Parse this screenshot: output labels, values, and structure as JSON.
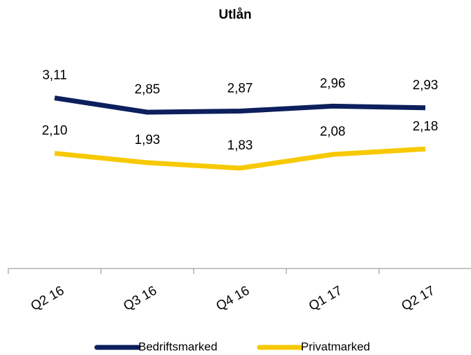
{
  "chart_data": {
    "type": "line",
    "title": "Utlån",
    "categories": [
      "Q2 16",
      "Q3 16",
      "Q4 16",
      "Q1 17",
      "Q2 17"
    ],
    "series": [
      {
        "name": "Bedriftsmarked",
        "color": "#0d1f5c",
        "values": [
          3.11,
          2.85,
          2.87,
          2.96,
          2.93
        ],
        "value_labels": [
          "3,11",
          "2,85",
          "2,87",
          "2,96",
          "2,93"
        ]
      },
      {
        "name": "Privatmarked",
        "color": "#f7c900",
        "values": [
          2.1,
          1.93,
          1.83,
          2.08,
          2.18
        ],
        "value_labels": [
          "2,10",
          "1,93",
          "1,83",
          "2,08",
          "2,18"
        ]
      }
    ],
    "ylim": [
      0,
      4
    ]
  }
}
